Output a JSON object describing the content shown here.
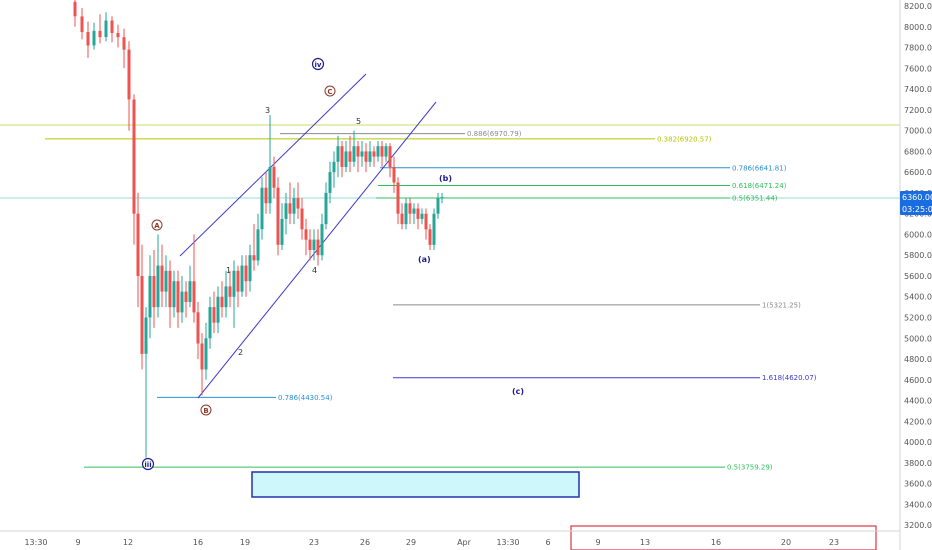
{
  "chart_data": {
    "type": "candlestick",
    "y_axis": {
      "ticks": [
        "8200.00",
        "8000.00",
        "7800.00",
        "7600.00",
        "7400.00",
        "7200.00",
        "7000.00",
        "6800.00",
        "6600.00",
        "6400.00",
        "6200.00",
        "6000.00",
        "5800.00",
        "5600.00",
        "5400.00",
        "5200.00",
        "5000.00",
        "4800.00",
        "4600.00",
        "4400.00",
        "4200.00",
        "4000.00",
        "3800.00",
        "3600.00",
        "3400.00",
        "3200.00"
      ],
      "range": [
        3150,
        8280
      ]
    },
    "x_axis": {
      "ticks": [
        "13:30",
        "9",
        "12",
        "16",
        "19",
        "23",
        "26",
        "29",
        "Apr",
        "13:30",
        "6",
        "9",
        "13",
        "16",
        "20",
        "23"
      ]
    },
    "price_badge": {
      "value": "6360.00",
      "countdown": "03:25:06",
      "color": "#1a6de0"
    },
    "fib_levels": [
      {
        "label": "0.886(6970.79)",
        "price": 6970.79,
        "color": "#8a8a8a"
      },
      {
        "label": "0.382(6920.57)",
        "price": 6920.57,
        "color": "#b8c400"
      },
      {
        "label": "0.786(6641.81)",
        "price": 6641.81,
        "color": "#2a8fd6"
      },
      {
        "label": "0.618(6471.24)",
        "price": 6471.24,
        "color": "#2fbf5a"
      },
      {
        "label": "0.5(6351.44)",
        "price": 6351.44,
        "color": "#2fbf5a"
      },
      {
        "label": "1(5321.25)",
        "price": 5321.25,
        "color": "#8a8a8a"
      },
      {
        "label": "1.618(4620.07)",
        "price": 4620.07,
        "color": "#3a3ad0"
      },
      {
        "label": "0.786(4430.54)",
        "price": 4430.54,
        "color": "#2a8fd6"
      },
      {
        "label": "0.5(3759.29)",
        "price": 3759.29,
        "color": "#2fbf5a"
      }
    ],
    "wave_labels": [
      "1",
      "2",
      "3",
      "4",
      "5",
      "(a)",
      "(b)",
      "(c)"
    ],
    "circled_labels": [
      "A",
      "B",
      "C",
      "iv",
      "iii"
    ],
    "colors": {
      "up": "#26a69a",
      "down": "#ef5350",
      "channel": "#3a3ad0",
      "target_box": "#cdf7fb",
      "target_border": "#2233aa"
    }
  }
}
